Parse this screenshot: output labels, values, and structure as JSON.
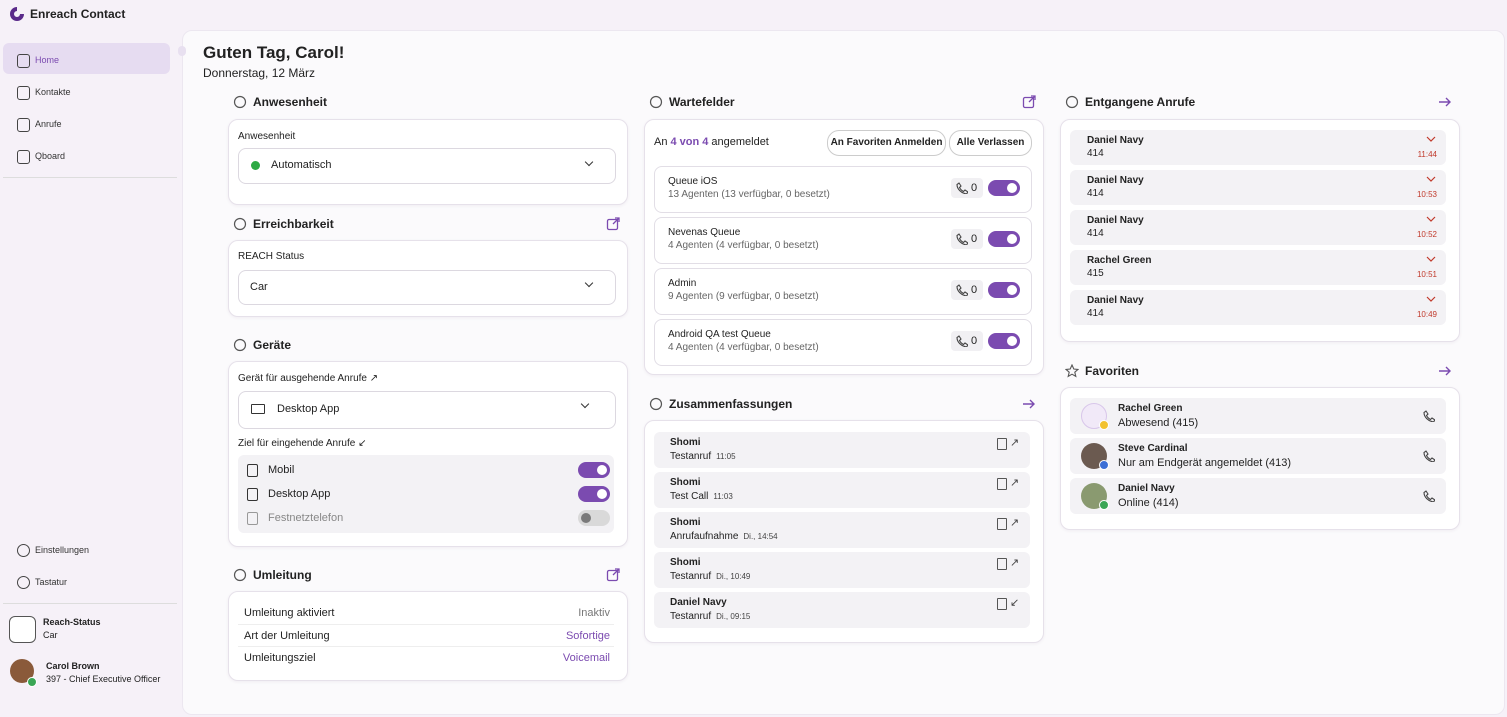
{
  "app": {
    "title": "Enreach Contact"
  },
  "nav": {
    "items": [
      "Home",
      "Kontakte",
      "Anrufe",
      "Qboard"
    ],
    "bottom": [
      "Einstellungen",
      "Tastatur"
    ]
  },
  "reach": {
    "label": "Reach-Status",
    "value": "Car"
  },
  "user": {
    "name": "Carol Brown",
    "detail": "397  - Chief Executive Officer"
  },
  "header": {
    "greeting": "Guten Tag, Carol!",
    "date": "Donnerstag, 12 März"
  },
  "presence": {
    "title": "Anwesenheit",
    "label": "Anwesenheit",
    "value": "Automatisch"
  },
  "reachability": {
    "title": "Erreichbarkeit",
    "label": "REACH Status",
    "value": "Car"
  },
  "devices": {
    "title": "Geräte",
    "outgoing_label": "Gerät für ausgehende Anrufe ↗",
    "outgoing": "Desktop App",
    "incoming_label": "Ziel für eingehende Anrufe ↙",
    "incoming": [
      {
        "name": "Mobil",
        "on": true
      },
      {
        "name": "Desktop App",
        "on": true
      },
      {
        "name": "Festnetztelefon",
        "on": false
      }
    ]
  },
  "forwarding": {
    "title": "Umleitung",
    "rows": [
      [
        "Umleitung aktiviert",
        "Inaktiv"
      ],
      [
        "Art der Umleitung",
        "Sofortige"
      ],
      [
        "Umleitungsziel",
        "Voicemail"
      ]
    ]
  },
  "queues": {
    "title": "Wartefelder",
    "status_prefix": "An",
    "status_count": "4 von 4",
    "status_suffix": "angemeldet",
    "buttons": [
      "An Favoriten Anmelden",
      "Alle Verlassen"
    ],
    "items": [
      {
        "name": "Queue iOS",
        "detail": "13 Agenten (13 verfügbar, 0 besetzt)",
        "calls": 0,
        "on": true
      },
      {
        "name": "Nevenas Queue",
        "detail": "4 Agenten (4 verfügbar, 0 besetzt)",
        "calls": 0,
        "on": true
      },
      {
        "name": "Admin",
        "detail": "9 Agenten (9 verfügbar, 0 besetzt)",
        "calls": 0,
        "on": true
      },
      {
        "name": "Android QA test Queue",
        "detail": "4 Agenten (4 verfügbar, 0 besetzt)",
        "calls": 0,
        "on": true
      }
    ]
  },
  "summaries": {
    "title": "Zusammenfassungen",
    "items": [
      {
        "name": "Shomi",
        "subject": "Testanruf",
        "time": "11:05",
        "direction": "↗"
      },
      {
        "name": "Shomi",
        "subject": "Test Call",
        "time": "11:03",
        "direction": "↗"
      },
      {
        "name": "Shomi",
        "subject": "Anrufaufnahme",
        "time": "Di., 14:54",
        "direction": "↗"
      },
      {
        "name": "Shomi",
        "subject": "Testanruf",
        "time": "Di., 10:49",
        "direction": "↗"
      },
      {
        "name": "Daniel Navy",
        "subject": "Testanruf",
        "time": "Di., 09:15",
        "direction": "↙"
      }
    ]
  },
  "missed": {
    "title": "Entgangene Anrufe",
    "items": [
      {
        "name": "Daniel Navy",
        "number": "414",
        "time": "11:44"
      },
      {
        "name": "Daniel Navy",
        "number": "414",
        "time": "10:53"
      },
      {
        "name": "Daniel Navy",
        "number": "414",
        "time": "10:52"
      },
      {
        "name": "Rachel Green",
        "number": "415",
        "time": "10:51"
      },
      {
        "name": "Daniel Navy",
        "number": "414",
        "time": "10:49"
      }
    ]
  },
  "favorites": {
    "title": "Favoriten",
    "items": [
      {
        "name": "Rachel Green",
        "status": "Abwesend (415)",
        "dot": "#f2c230"
      },
      {
        "name": "Steve Cardinal",
        "status": "Nur am Endgerät angemeldet (413)",
        "dot": "#3b6fd6"
      },
      {
        "name": "Daniel Navy",
        "status": "Online (414)",
        "dot": "#3aa655"
      }
    ]
  }
}
